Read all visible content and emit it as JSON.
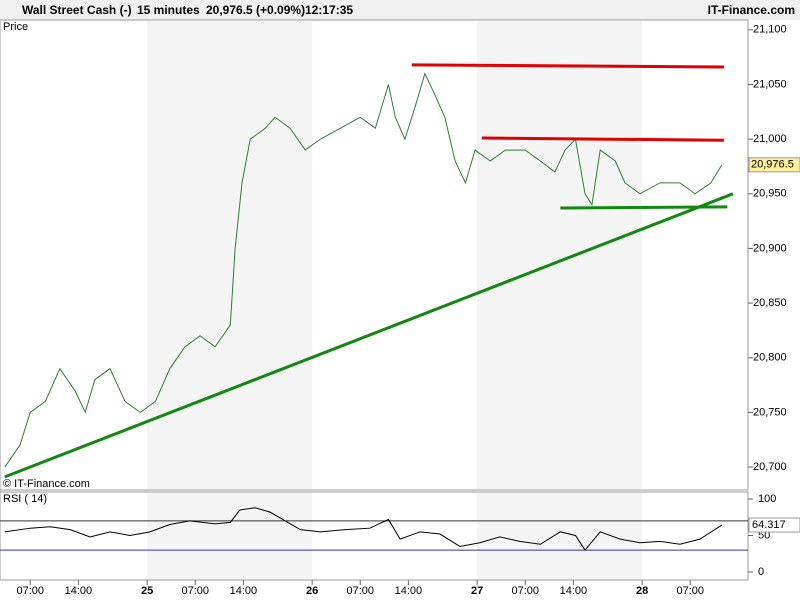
{
  "header": {
    "title": "Wall Street Cash (-)",
    "interval": "15 minutes",
    "quote": "20,976.5 (+0.09%)",
    "time": "12:17:35",
    "brand": "IT-Finance.com"
  },
  "chart_data": [
    {
      "type": "line",
      "label": "Price",
      "credit": "© IT-Finance.com",
      "xlim": [
        2.6,
        111.4
      ],
      "xticks": [
        {
          "value": 7,
          "label": "07:00"
        },
        {
          "value": 14,
          "label": "14:00"
        },
        {
          "value": 24,
          "label": "25"
        },
        {
          "value": 31,
          "label": "07:00"
        },
        {
          "value": 38,
          "label": "14:00"
        },
        {
          "value": 48,
          "label": "26"
        },
        {
          "value": 55,
          "label": "07:00"
        },
        {
          "value": 62,
          "label": "14:00"
        },
        {
          "value": 72,
          "label": "27"
        },
        {
          "value": 79,
          "label": "07:00"
        },
        {
          "value": 86,
          "label": "14:00"
        },
        {
          "value": 96,
          "label": "28"
        },
        {
          "value": 103,
          "label": "07:00"
        }
      ],
      "ylim": [
        20679,
        21109
      ],
      "yticks": [
        {
          "value": 20700,
          "label": "20,700"
        },
        {
          "value": 20750,
          "label": "20,750"
        },
        {
          "value": 20800,
          "label": "20,800"
        },
        {
          "value": 20850,
          "label": "20,850"
        },
        {
          "value": 20900,
          "label": "20,900"
        },
        {
          "value": 20950,
          "label": "20,950"
        },
        {
          "value": 21000,
          "label": "21,000"
        },
        {
          "value": 21050,
          "label": "21,050"
        },
        {
          "value": 21100,
          "label": "21,100"
        }
      ],
      "last": {
        "value": 20976.5,
        "label": "20,976.5"
      },
      "series": [
        {
          "color": "#2e7d32",
          "x": [
            3.3,
            5.5,
            7.0,
            9.2,
            11.3,
            13.5,
            15.0,
            16.4,
            18.6,
            20.8,
            23.0,
            25.2,
            27.3,
            29.5,
            31.7,
            33.9,
            36.1,
            36.8,
            37.8,
            39.0,
            41.2,
            42.6,
            44.8,
            47.0,
            49.2,
            52.1,
            55.0,
            57.2,
            59.1,
            60.1,
            61.5,
            63.0,
            64.4,
            65.9,
            67.3,
            68.8,
            70.3,
            71.7,
            73.9,
            76.1,
            79.0,
            81.2,
            83.3,
            84.8,
            86.3,
            87.7,
            88.7,
            89.9,
            92.1,
            93.5,
            95.7,
            98.6,
            101.5,
            103.7,
            106.0,
            107.6
          ],
          "values": [
            20700,
            20720,
            20750,
            20760,
            20790,
            20770,
            20750,
            20780,
            20790,
            20760,
            20750,
            20760,
            20790,
            20810,
            20820,
            20810,
            20830,
            20900,
            20960,
            21000,
            21010,
            21020,
            21010,
            20990,
            21000,
            21010,
            21020,
            21010,
            21050,
            21020,
            21000,
            21030,
            21060,
            21040,
            21020,
            20980,
            20960,
            20990,
            20980,
            20990,
            20990,
            20980,
            20970,
            20990,
            21000,
            20950,
            20940,
            20990,
            20980,
            20960,
            20950,
            20960,
            20960,
            20950,
            20960,
            20976.5
          ]
        }
      ],
      "lines": [
        {
          "color": "#e00000",
          "x": [
            62.5,
            107.9
          ],
          "y": [
            21068,
            21066
          ]
        },
        {
          "color": "#e00000",
          "x": [
            72.7,
            107.9
          ],
          "y": [
            21001,
            20999
          ]
        },
        {
          "color": "#118811",
          "x": [
            84.1,
            108.4
          ],
          "y": [
            20937,
            20938
          ]
        },
        {
          "color": "#118811",
          "x": [
            3.3,
            109.2
          ],
          "y": [
            20691,
            20950
          ]
        }
      ]
    },
    {
      "type": "line",
      "label": "RSI ( 14)",
      "xlim": [
        2.6,
        111.4
      ],
      "ylim": [
        -11,
        109.6
      ],
      "yticks": [
        0,
        50,
        100
      ],
      "levels": [
        {
          "value": 70,
          "color": "#333"
        },
        {
          "value": 30,
          "color": "#3030a0"
        }
      ],
      "last": 64.317,
      "series": [
        {
          "color": "#000",
          "x": [
            3.3,
            7.0,
            9.9,
            12.8,
            15.7,
            18.6,
            21.5,
            24.4,
            27.3,
            30.2,
            33.9,
            36.1,
            37.5,
            39.7,
            41.9,
            44.1,
            46.3,
            49.2,
            52.8,
            56.4,
            59.1,
            60.8,
            63.7,
            66.6,
            69.5,
            72.4,
            75.3,
            78.2,
            81.2,
            84.1,
            86.3,
            87.7,
            89.9,
            92.8,
            95.7,
            98.6,
            101.5,
            104.4,
            107.6
          ],
          "values": [
            55,
            60,
            62,
            58,
            48,
            55,
            50,
            55,
            65,
            70,
            66,
            68,
            85,
            88,
            82,
            70,
            58,
            55,
            58,
            60,
            72,
            45,
            55,
            52,
            35,
            40,
            48,
            42,
            38,
            55,
            50,
            30,
            55,
            45,
            40,
            42,
            38,
            45,
            64.317
          ]
        }
      ]
    }
  ]
}
